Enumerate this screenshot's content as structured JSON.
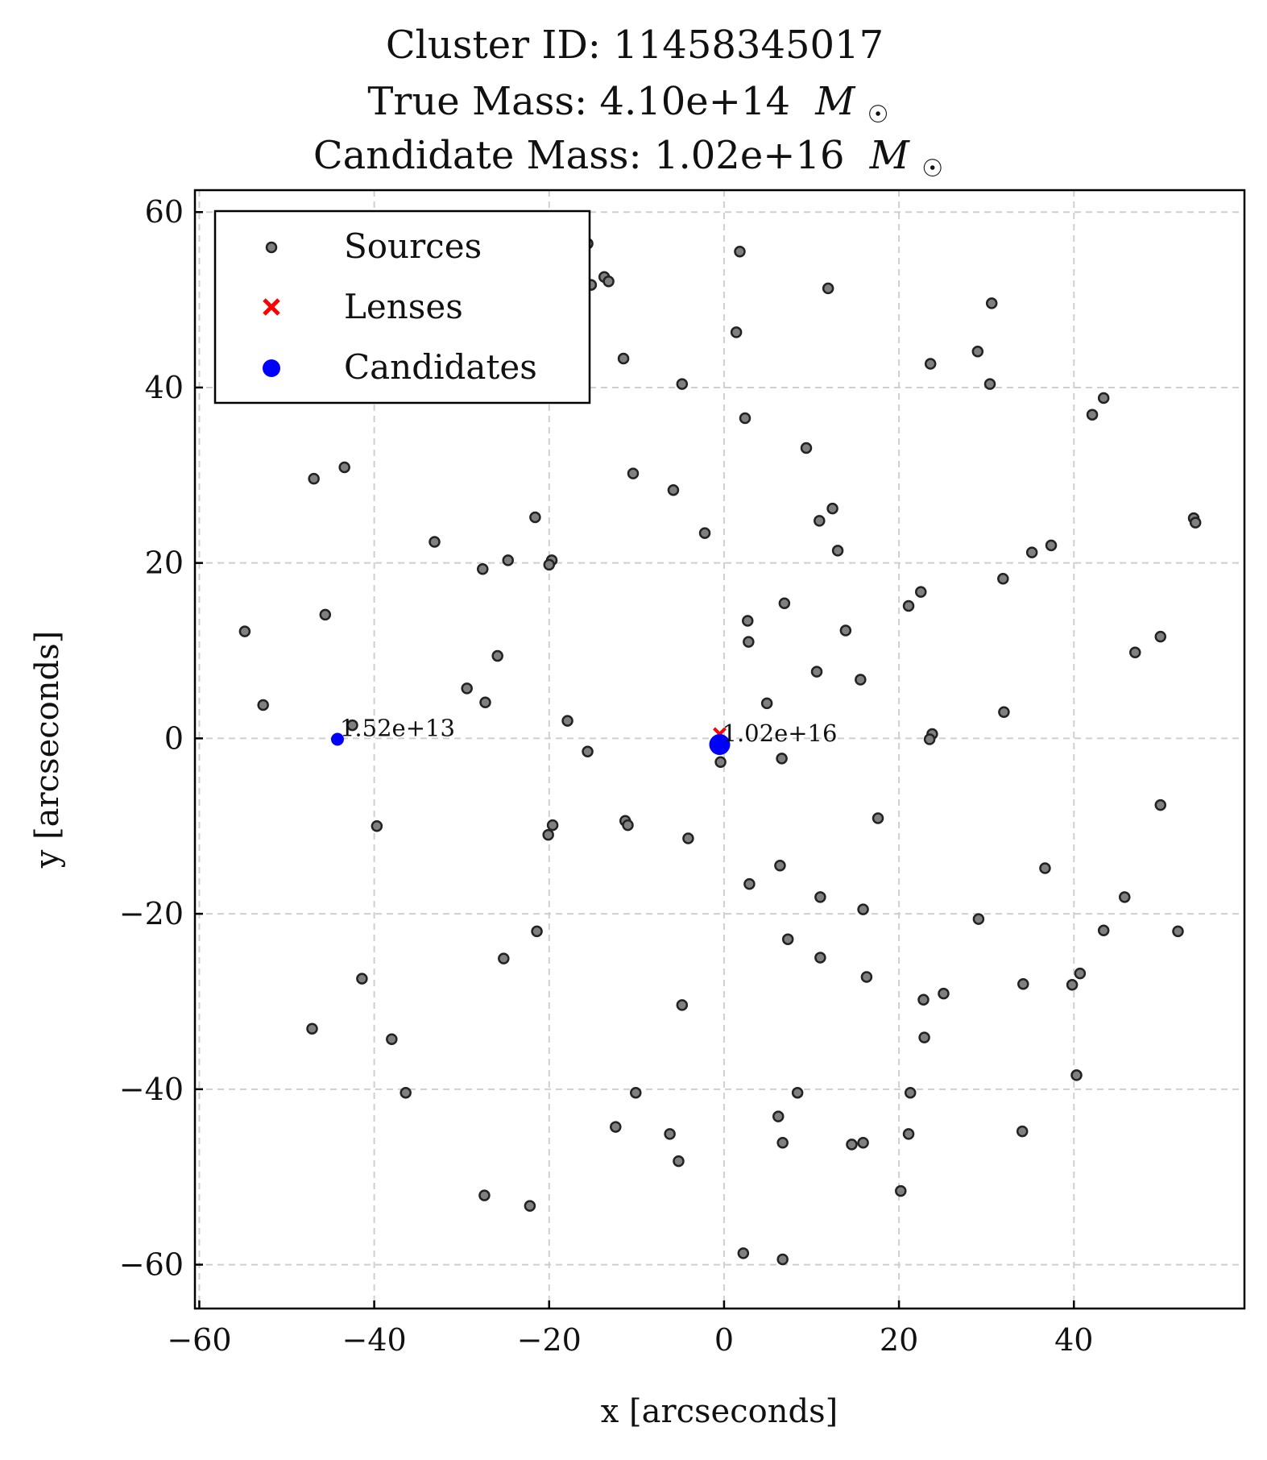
{
  "chart_data": {
    "type": "scatter",
    "title_lines": [
      "Cluster ID: 11458345017",
      "True Mass: 4.10e+14",
      "Candidate Mass: 1.02e+16"
    ],
    "title_unit_symbol": "M",
    "xlabel": "x [arcseconds]",
    "ylabel": "y [arcseconds]",
    "xlim": [
      -60.5,
      59.5
    ],
    "ylim": [
      -65,
      62.5
    ],
    "xticks": [
      -60,
      -40,
      -20,
      0,
      20,
      40
    ],
    "yticks": [
      60,
      40,
      20,
      0,
      -20,
      -40,
      -60
    ],
    "grid": true,
    "legend_position": "upper-left",
    "legend": [
      "Sources",
      "Lenses",
      "Candidates"
    ],
    "colors": {
      "sources": "#555555",
      "lenses": "#ff0000",
      "candidates": "#0000ff"
    },
    "series": [
      {
        "name": "Sources",
        "marker": "circle",
        "points": [
          [
            -15.6,
            56.4
          ],
          [
            1.8,
            55.5
          ],
          [
            -15.2,
            51.7
          ],
          [
            -13.7,
            52.6
          ],
          [
            -13.2,
            52.1
          ],
          [
            11.9,
            51.3
          ],
          [
            30.6,
            49.6
          ],
          [
            1.4,
            46.3
          ],
          [
            29.0,
            44.1
          ],
          [
            23.6,
            42.7
          ],
          [
            -11.5,
            43.3
          ],
          [
            -4.8,
            40.4
          ],
          [
            30.4,
            40.4
          ],
          [
            43.4,
            38.8
          ],
          [
            42.1,
            36.9
          ],
          [
            2.4,
            36.5
          ],
          [
            9.4,
            33.1
          ],
          [
            -43.4,
            30.9
          ],
          [
            -46.9,
            29.6
          ],
          [
            -10.4,
            30.2
          ],
          [
            -5.8,
            28.3
          ],
          [
            12.4,
            26.2
          ],
          [
            10.9,
            24.8
          ],
          [
            -21.6,
            25.2
          ],
          [
            53.7,
            25.1
          ],
          [
            53.9,
            24.6
          ],
          [
            -2.2,
            23.4
          ],
          [
            -33.1,
            22.4
          ],
          [
            37.4,
            22.0
          ],
          [
            13.0,
            21.4
          ],
          [
            35.2,
            21.2
          ],
          [
            -24.7,
            20.3
          ],
          [
            -19.7,
            20.3
          ],
          [
            -20.0,
            19.8
          ],
          [
            -27.6,
            19.3
          ],
          [
            31.9,
            18.2
          ],
          [
            22.5,
            16.7
          ],
          [
            6.9,
            15.4
          ],
          [
            21.1,
            15.1
          ],
          [
            -45.6,
            14.1
          ],
          [
            2.7,
            13.4
          ],
          [
            49.9,
            11.6
          ],
          [
            -54.8,
            12.2
          ],
          [
            13.9,
            12.3
          ],
          [
            2.8,
            11.0
          ],
          [
            47.0,
            9.8
          ],
          [
            -25.9,
            9.4
          ],
          [
            10.6,
            7.6
          ],
          [
            15.6,
            6.7
          ],
          [
            -29.4,
            5.7
          ],
          [
            -27.3,
            4.1
          ],
          [
            4.9,
            4.0
          ],
          [
            -52.7,
            3.8
          ],
          [
            32.0,
            3.0
          ],
          [
            -17.9,
            2.0
          ],
          [
            -42.5,
            1.5
          ],
          [
            23.8,
            0.5
          ],
          [
            23.5,
            -0.1
          ],
          [
            -15.6,
            -1.5
          ],
          [
            6.6,
            -2.3
          ],
          [
            -0.4,
            -2.7
          ],
          [
            49.9,
            -7.6
          ],
          [
            17.6,
            -9.1
          ],
          [
            -39.7,
            -10.0
          ],
          [
            -19.6,
            -9.9
          ],
          [
            -11.3,
            -9.4
          ],
          [
            -11.0,
            -9.9
          ],
          [
            -20.1,
            -11.0
          ],
          [
            -4.1,
            -11.4
          ],
          [
            6.4,
            -14.5
          ],
          [
            36.7,
            -14.8
          ],
          [
            2.9,
            -16.6
          ],
          [
            11.0,
            -18.1
          ],
          [
            45.8,
            -18.1
          ],
          [
            15.9,
            -19.5
          ],
          [
            29.1,
            -20.6
          ],
          [
            51.9,
            -22.0
          ],
          [
            -21.4,
            -22.0
          ],
          [
            43.4,
            -21.9
          ],
          [
            7.3,
            -22.9
          ],
          [
            -25.2,
            -25.1
          ],
          [
            11.0,
            -25.0
          ],
          [
            16.3,
            -27.2
          ],
          [
            -41.4,
            -27.4
          ],
          [
            40.7,
            -26.8
          ],
          [
            34.2,
            -28.0
          ],
          [
            39.8,
            -28.1
          ],
          [
            25.1,
            -29.1
          ],
          [
            22.8,
            -29.8
          ],
          [
            -4.8,
            -30.4
          ],
          [
            -47.1,
            -33.1
          ],
          [
            -38.0,
            -34.3
          ],
          [
            22.9,
            -34.1
          ],
          [
            40.3,
            -38.4
          ],
          [
            -36.4,
            -40.4
          ],
          [
            -10.1,
            -40.4
          ],
          [
            8.4,
            -40.4
          ],
          [
            21.3,
            -40.4
          ],
          [
            6.2,
            -43.1
          ],
          [
            -12.4,
            -44.3
          ],
          [
            34.1,
            -44.8
          ],
          [
            -6.2,
            -45.1
          ],
          [
            21.1,
            -45.1
          ],
          [
            6.7,
            -46.1
          ],
          [
            14.6,
            -46.3
          ],
          [
            15.9,
            -46.1
          ],
          [
            -5.2,
            -48.2
          ],
          [
            20.2,
            -51.6
          ],
          [
            -27.4,
            -52.1
          ],
          [
            -22.2,
            -53.3
          ],
          [
            2.2,
            -58.7
          ],
          [
            6.7,
            -59.4
          ]
        ]
      },
      {
        "name": "Lenses",
        "marker": "x",
        "points": [
          [
            -0.5,
            0.5
          ]
        ]
      },
      {
        "name": "Candidates",
        "marker": "circle",
        "points": [
          [
            -44.2,
            -0.1
          ],
          [
            -0.5,
            -0.7
          ]
        ],
        "mass_labels": [
          "1.52e+13",
          "1.02e+16"
        ]
      }
    ]
  }
}
